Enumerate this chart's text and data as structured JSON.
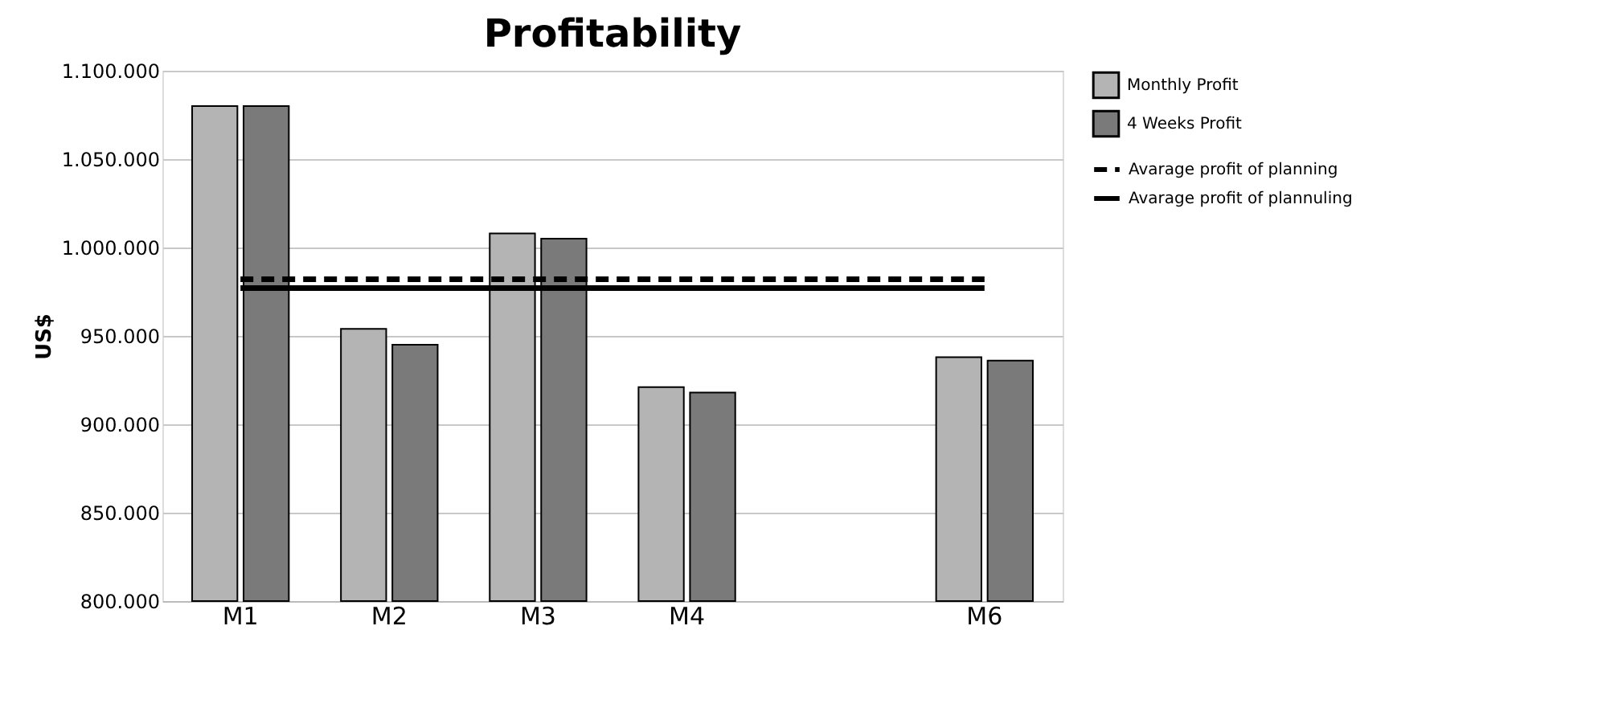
{
  "chart_data": {
    "type": "bar",
    "title": "Profitability",
    "ylabel": "US$",
    "categories": [
      "M1",
      "M2",
      "M3",
      "M4",
      null,
      "M6"
    ],
    "series": [
      {
        "name": "Monthly Profit",
        "color": "#b4b4b4",
        "values": [
          1080000,
          954000,
          1008000,
          921000,
          null,
          938000
        ]
      },
      {
        "name": "4 Weeks Profit",
        "color": "#7a7a7a",
        "values": [
          1080000,
          945000,
          1005000,
          918000,
          null,
          936000
        ]
      },
      {
        "name": "Avarage profit of planning",
        "type": "line",
        "line_style": "dashed",
        "color": "#000000",
        "values": [
          982000,
          982000,
          982000,
          982000,
          982000,
          982000
        ]
      },
      {
        "name": "Avarage profit of plannuling",
        "type": "line",
        "line_style": "solid",
        "color": "#000000",
        "values": [
          977000,
          977000,
          977000,
          977000,
          977000,
          977000
        ]
      }
    ],
    "ylim": [
      800000,
      1100000
    ],
    "yticks": [
      {
        "value": 800000,
        "label": "800.000"
      },
      {
        "value": 850000,
        "label": "850.000"
      },
      {
        "value": 900000,
        "label": "900.000"
      },
      {
        "value": 950000,
        "label": "950.000"
      },
      {
        "value": 1000000,
        "label": "1.000.000"
      },
      {
        "value": 1050000,
        "label": "1.050.000"
      },
      {
        "value": 1100000,
        "label": "1.100.000"
      }
    ],
    "grid": "y",
    "legend": "right"
  }
}
